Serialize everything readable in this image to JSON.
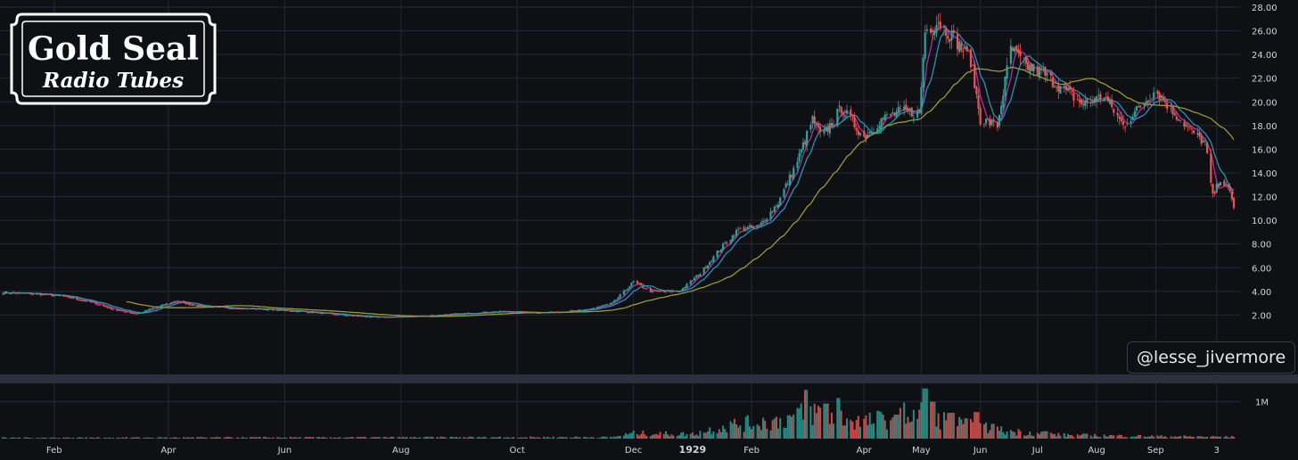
{
  "logo": {
    "line1": "Gold Seal",
    "line2": "Radio Tubes"
  },
  "watermark": "@lesse_jivermore",
  "colors": {
    "background": "#0f1014",
    "grid": "#262a36",
    "up": "#26a69a",
    "down": "#ef5350",
    "ma_short": "#b02ea8",
    "ma_mid": "#2196b3",
    "ma_long": "#9e9a2a",
    "separator": "#2b303c"
  },
  "chart_data": {
    "type": "candlestick",
    "y_ticks": [
      "2.00",
      "4.00",
      "6.00",
      "8.00",
      "10.00",
      "12.00",
      "14.00",
      "16.00",
      "18.00",
      "20.00",
      "22.00",
      "24.00",
      "26.00",
      "28.00"
    ],
    "ylim": [
      0,
      28.6
    ],
    "volume_ticks": [
      "1M"
    ],
    "x_ticks": [
      {
        "label": "Feb",
        "date": "1928-02-01"
      },
      {
        "label": "Apr",
        "date": "1928-04-01"
      },
      {
        "label": "Jun",
        "date": "1928-06-01"
      },
      {
        "label": "Aug",
        "date": "1928-08-01"
      },
      {
        "label": "Oct",
        "date": "1928-10-01"
      },
      {
        "label": "Dec",
        "date": "1928-12-01"
      },
      {
        "label": "1929",
        "date": "1929-01-01",
        "bold": true
      },
      {
        "label": "Feb",
        "date": "1929-02-01"
      },
      {
        "label": "Apr",
        "date": "1929-04-01"
      },
      {
        "label": "May",
        "date": "1929-05-01"
      },
      {
        "label": "Jun",
        "date": "1929-06-01"
      },
      {
        "label": "Jul",
        "date": "1929-07-01"
      },
      {
        "label": "Aug",
        "date": "1929-08-01"
      },
      {
        "label": "Sep",
        "date": "1929-09-01"
      },
      {
        "label": "3",
        "date": "1929-10-03"
      }
    ],
    "x_range": [
      "1928-01-05",
      "1929-10-12"
    ],
    "price_path": [
      [
        "1928-01-05",
        3.9
      ],
      [
        "1928-01-20",
        3.8
      ],
      [
        "1928-02-05",
        3.6
      ],
      [
        "1928-02-20",
        3.1
      ],
      [
        "1928-03-05",
        2.4
      ],
      [
        "1928-03-15",
        2.1
      ],
      [
        "1928-03-28",
        2.8
      ],
      [
        "1928-04-05",
        3.2
      ],
      [
        "1928-04-15",
        2.8
      ],
      [
        "1928-05-01",
        2.6
      ],
      [
        "1928-05-20",
        2.5
      ],
      [
        "1928-06-10",
        2.3
      ],
      [
        "1928-07-01",
        2.0
      ],
      [
        "1928-07-20",
        1.8
      ],
      [
        "1928-08-10",
        1.9
      ],
      [
        "1928-09-01",
        2.1
      ],
      [
        "1928-09-20",
        2.3
      ],
      [
        "1928-10-15",
        2.2
      ],
      [
        "1928-11-05",
        2.4
      ],
      [
        "1928-11-20",
        3.0
      ],
      [
        "1928-12-01",
        4.8
      ],
      [
        "1928-12-10",
        4.0
      ],
      [
        "1928-12-25",
        4.0
      ],
      [
        "1929-01-05",
        5.5
      ],
      [
        "1929-01-15",
        7.5
      ],
      [
        "1929-01-25",
        9.2
      ],
      [
        "1929-02-05",
        9.5
      ],
      [
        "1929-02-15",
        11.5
      ],
      [
        "1929-02-25",
        15.0
      ],
      [
        "1929-03-05",
        18.5
      ],
      [
        "1929-03-10",
        17.0
      ],
      [
        "1929-03-20",
        19.5
      ],
      [
        "1929-04-01",
        17.0
      ],
      [
        "1929-04-10",
        18.5
      ],
      [
        "1929-04-20",
        19.2
      ],
      [
        "1929-04-30",
        19.0
      ],
      [
        "1929-05-03",
        26.0
      ],
      [
        "1929-05-10",
        26.8
      ],
      [
        "1929-05-20",
        25.0
      ],
      [
        "1929-05-27",
        23.5
      ],
      [
        "1929-06-01",
        18.5
      ],
      [
        "1929-06-10",
        18.0
      ],
      [
        "1929-06-17",
        24.5
      ],
      [
        "1929-06-25",
        23.0
      ],
      [
        "1929-07-03",
        22.5
      ],
      [
        "1929-07-15",
        21.0
      ],
      [
        "1929-07-25",
        19.8
      ],
      [
        "1929-08-05",
        20.5
      ],
      [
        "1929-08-15",
        18.0
      ],
      [
        "1929-08-25",
        19.8
      ],
      [
        "1929-09-01",
        21.0
      ],
      [
        "1929-09-10",
        19.2
      ],
      [
        "1929-09-20",
        17.5
      ],
      [
        "1929-09-27",
        16.5
      ],
      [
        "1929-10-01",
        12.0
      ],
      [
        "1929-10-05",
        13.5
      ],
      [
        "1929-10-10",
        12.3
      ],
      [
        "1929-10-12",
        11.2
      ]
    ],
    "volume_path": [
      [
        "1928-01-05",
        0.03
      ],
      [
        "1928-11-20",
        0.05
      ],
      [
        "1928-12-01",
        0.18
      ],
      [
        "1929-01-01",
        0.15
      ],
      [
        "1929-01-20",
        0.45
      ],
      [
        "1929-02-15",
        0.6
      ],
      [
        "1929-03-05",
        0.9
      ],
      [
        "1929-04-01",
        0.55
      ],
      [
        "1929-05-01",
        0.9
      ],
      [
        "1929-05-20",
        0.5
      ],
      [
        "1929-06-15",
        0.25
      ],
      [
        "1929-07-15",
        0.12
      ],
      [
        "1929-09-01",
        0.08
      ],
      [
        "1929-10-12",
        0.06
      ]
    ],
    "volume_spikes": [
      [
        "1929-03-02",
        1.32
      ],
      [
        "1929-03-12",
        0.95
      ],
      [
        "1929-03-18",
        1.1
      ],
      [
        "1929-04-18",
        0.65
      ],
      [
        "1929-05-03",
        1.36
      ],
      [
        "1929-05-07",
        1.0
      ],
      [
        "1929-05-17",
        0.7
      ],
      [
        "1929-05-30",
        0.72
      ],
      [
        "1929-06-08",
        0.4
      ],
      [
        "1929-07-05",
        0.2
      ]
    ],
    "moving_averages": [
      {
        "period": 5,
        "color": "#b02ea8"
      },
      {
        "period": 10,
        "color": "#2196b3"
      },
      {
        "period": 40,
        "color": "#9e9a2a",
        "start": "1928-03-10"
      }
    ]
  }
}
